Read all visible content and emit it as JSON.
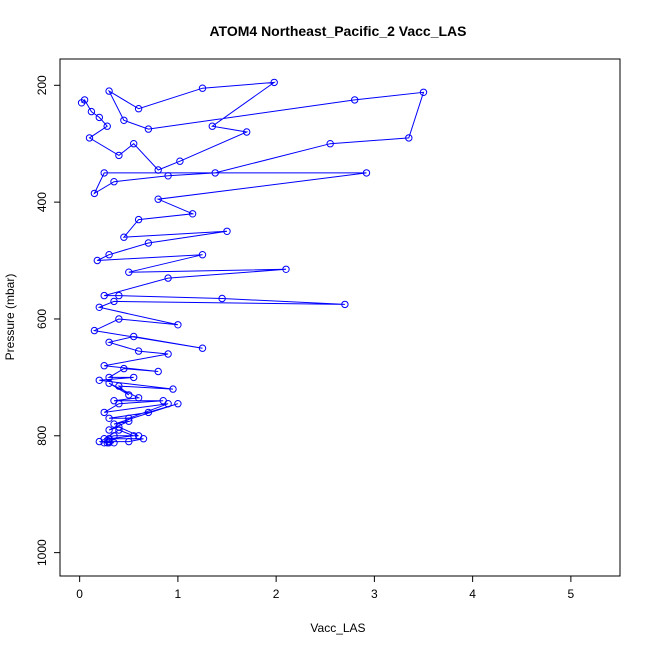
{
  "chart_data": {
    "type": "scatter",
    "title": "ATOM4 Northeast_Pacific_2 Vacc_LAS",
    "xlabel": "Vacc_LAS",
    "ylabel": "Pressure (mbar)",
    "xlim": [
      -0.2,
      5.5
    ],
    "ylim": [
      1040,
      155
    ],
    "y_reversed": true,
    "xticks": [
      0,
      1,
      2,
      3,
      4,
      5
    ],
    "yticks": [
      200,
      400,
      600,
      800,
      1000
    ],
    "grid": false,
    "connected": true,
    "marker": "open-circle",
    "color": "#0000ff",
    "series": [
      {
        "x": [
          0.02,
          0.05,
          0.12,
          0.2,
          0.28,
          0.1,
          0.4,
          0.55,
          0.8,
          1.02,
          1.7,
          1.35,
          1.98,
          1.25,
          0.6,
          0.3,
          0.45,
          0.7,
          2.8,
          3.5,
          3.35,
          2.55,
          1.38,
          0.9,
          0.35,
          0.15,
          0.25,
          2.92,
          0.8,
          1.15,
          0.6,
          0.45,
          1.5,
          0.7,
          0.3,
          0.18,
          1.25,
          0.5,
          2.1,
          0.9,
          0.25,
          0.4,
          1.45,
          2.7,
          0.35,
          0.2,
          1.0,
          0.4,
          0.15,
          1.25,
          0.55,
          0.3,
          0.6,
          0.9,
          0.25,
          0.8,
          0.45,
          0.3,
          0.55,
          0.2,
          0.95,
          0.4,
          0.5,
          0.3,
          0.6,
          0.35,
          0.85,
          0.4,
          0.25,
          0.9,
          0.5,
          0.3,
          0.7,
          1.0,
          0.35,
          0.5,
          0.3,
          0.4,
          0.6,
          0.35,
          0.25,
          0.4,
          0.55,
          0.3,
          0.65,
          0.5,
          0.2,
          0.3,
          0.25,
          0.35,
          0.3,
          0.28
        ],
        "y": [
          230,
          225,
          245,
          255,
          270,
          290,
          320,
          300,
          345,
          330,
          280,
          270,
          195,
          205,
          240,
          210,
          260,
          275,
          225,
          212,
          290,
          300,
          350,
          355,
          365,
          385,
          350,
          350,
          395,
          420,
          430,
          460,
          450,
          470,
          490,
          500,
          490,
          520,
          515,
          530,
          560,
          560,
          565,
          575,
          570,
          580,
          610,
          600,
          620,
          650,
          630,
          640,
          655,
          660,
          680,
          690,
          685,
          700,
          700,
          705,
          720,
          715,
          730,
          710,
          735,
          740,
          740,
          745,
          760,
          745,
          770,
          770,
          760,
          745,
          780,
          775,
          790,
          785,
          800,
          800,
          805,
          790,
          800,
          805,
          805,
          810,
          810,
          810,
          812,
          812,
          812,
          812
        ]
      }
    ]
  }
}
